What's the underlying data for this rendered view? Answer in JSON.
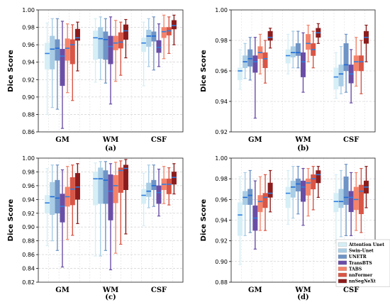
{
  "legend": {
    "placement": "right",
    "items": [
      {
        "name": "Attention Unet",
        "color": "#d6eef6"
      },
      {
        "name": "Swin-Unet",
        "color": "#a9cde5"
      },
      {
        "name": "UNETR",
        "color": "#6f94c6"
      },
      {
        "name": "TransBTS",
        "color": "#6a4ea6"
      },
      {
        "name": "TABS",
        "color": "#f4836b"
      },
      {
        "name": "nnFormer",
        "color": "#d95545"
      },
      {
        "name": "nnSegNeXt",
        "color": "#8c1c1c"
      }
    ]
  },
  "chart_data": [
    {
      "type": "box",
      "label": "(a)",
      "ylabel": "Dice Score",
      "ylim": [
        0.86,
        1.0
      ],
      "yticks": [
        "0.86",
        "0.88",
        "0.90",
        "0.92",
        "0.94",
        "0.96",
        "0.98",
        "1.00"
      ],
      "grid": true,
      "categories": [
        "GM",
        "WM",
        "CSF"
      ],
      "series": [
        {
          "name": "Attention Unet",
          "boxes": [
            [
              0.88,
              0.932,
              0.95,
              0.962,
              0.985
            ],
            [
              0.917,
              0.943,
              0.968,
              0.976,
              0.99
            ],
            [
              0.913,
              0.952,
              0.962,
              0.968,
              0.986
            ]
          ]
        },
        {
          "name": "Swin-Unet",
          "boxes": [
            [
              0.888,
              0.932,
              0.955,
              0.97,
              0.99
            ],
            [
              0.92,
              0.944,
              0.967,
              0.98,
              0.992
            ],
            [
              0.935,
              0.958,
              0.97,
              0.977,
              0.99
            ]
          ]
        },
        {
          "name": "UNETR",
          "boxes": [
            [
              0.886,
              0.942,
              0.956,
              0.966,
              0.99
            ],
            [
              0.916,
              0.943,
              0.966,
              0.975,
              0.99
            ],
            [
              0.931,
              0.964,
              0.97,
              0.975,
              0.992
            ]
          ]
        },
        {
          "name": "TransBTS",
          "boxes": [
            [
              0.864,
              0.913,
              0.947,
              0.955,
              0.987
            ],
            [
              0.892,
              0.938,
              0.958,
              0.97,
              0.992
            ],
            [
              0.935,
              0.951,
              0.957,
              0.965,
              0.984
            ]
          ]
        },
        {
          "name": "TABS",
          "boxes": [
            [
              0.905,
              0.942,
              0.956,
              0.967,
              0.984
            ],
            [
              0.918,
              0.954,
              0.962,
              0.97,
              0.988
            ],
            [
              0.944,
              0.968,
              0.975,
              0.98,
              0.994
            ]
          ]
        },
        {
          "name": "nnFormer",
          "boxes": [
            [
              0.896,
              0.938,
              0.96,
              0.966,
              0.983
            ],
            [
              0.925,
              0.956,
              0.963,
              0.974,
              0.986
            ],
            [
              0.95,
              0.971,
              0.976,
              0.98,
              0.992
            ]
          ]
        },
        {
          "name": "nnSegNeXt",
          "boxes": [
            [
              0.93,
              0.965,
              0.968,
              0.978,
              0.986
            ],
            [
              0.945,
              0.966,
              0.976,
              0.983,
              0.989
            ],
            [
              0.96,
              0.978,
              0.982,
              0.988,
              0.994
            ]
          ]
        }
      ]
    },
    {
      "type": "box",
      "label": "(b)",
      "ylabel": "Dice Score",
      "ylim": [
        0.92,
        1.0
      ],
      "yticks": [
        "0.92",
        "0.94",
        "0.96",
        "0.98",
        "1.00"
      ],
      "grid": true,
      "categories": [
        "GM",
        "WM",
        "CSF"
      ],
      "series": [
        {
          "name": "Attention Unet",
          "boxes": [
            [
              0.948,
              0.954,
              0.96,
              0.962,
              0.974
            ],
            [
              0.958,
              0.965,
              0.97,
              0.974,
              0.984
            ],
            [
              0.942,
              0.948,
              0.956,
              0.962,
              0.972
            ]
          ]
        },
        {
          "name": "Swin-Unet",
          "boxes": [
            [
              0.955,
              0.962,
              0.966,
              0.97,
              0.978
            ],
            [
              0.962,
              0.969,
              0.972,
              0.976,
              0.986
            ],
            [
              0.945,
              0.95,
              0.958,
              0.964,
              0.976
            ]
          ]
        },
        {
          "name": "UNETR",
          "boxes": [
            [
              0.954,
              0.963,
              0.968,
              0.974,
              0.982
            ],
            [
              0.962,
              0.97,
              0.972,
              0.978,
              0.986
            ],
            [
              0.946,
              0.96,
              0.964,
              0.978,
              0.984
            ]
          ]
        },
        {
          "name": "TransBTS",
          "boxes": [
            [
              0.929,
              0.959,
              0.966,
              0.97,
              0.982
            ],
            [
              0.946,
              0.956,
              0.966,
              0.972,
              0.985
            ],
            [
              0.939,
              0.952,
              0.958,
              0.964,
              0.974
            ]
          ]
        },
        {
          "name": "TABS",
          "boxes": [
            [
              0.958,
              0.968,
              0.972,
              0.976,
              0.984
            ],
            [
              0.966,
              0.974,
              0.978,
              0.984,
              0.99
            ],
            [
              0.95,
              0.96,
              0.966,
              0.97,
              0.982
            ]
          ]
        },
        {
          "name": "nnFormer",
          "boxes": [
            [
              0.952,
              0.962,
              0.968,
              0.972,
              0.98
            ],
            [
              0.962,
              0.97,
              0.974,
              0.978,
              0.986
            ],
            [
              0.945,
              0.96,
              0.966,
              0.97,
              0.98
            ]
          ]
        },
        {
          "name": "nnSegNeXt",
          "boxes": [
            [
              0.975,
              0.98,
              0.982,
              0.986,
              0.988
            ],
            [
              0.978,
              0.982,
              0.985,
              0.988,
              0.991
            ],
            [
              0.966,
              0.978,
              0.982,
              0.986,
              0.99
            ]
          ]
        }
      ]
    },
    {
      "type": "box",
      "label": "(c)",
      "ylabel": "Dice Score",
      "ylim": [
        0.82,
        1.0
      ],
      "yticks": [
        "0.82",
        "0.84",
        "0.86",
        "0.88",
        "0.90",
        "0.92",
        "0.94",
        "0.96",
        "0.98",
        "1.00"
      ],
      "grid": true,
      "categories": [
        "GM",
        "WM",
        "CSF"
      ],
      "series": [
        {
          "name": "Attention Unet",
          "boxes": [
            [
              0.873,
              0.92,
              0.935,
              0.946,
              0.985
            ],
            [
              0.858,
              0.932,
              0.97,
              0.98,
              0.993
            ],
            [
              0.902,
              0.934,
              0.946,
              0.955,
              0.978
            ]
          ]
        },
        {
          "name": "Swin-Unet",
          "boxes": [
            [
              0.88,
              0.918,
              0.944,
              0.965,
              0.99
            ],
            [
              0.858,
              0.934,
              0.97,
              0.986,
              0.995
            ],
            [
              0.928,
              0.944,
              0.952,
              0.964,
              0.99
            ]
          ]
        },
        {
          "name": "UNETR",
          "boxes": [
            [
              0.866,
              0.92,
              0.942,
              0.968,
              0.99
            ],
            [
              0.866,
              0.934,
              0.968,
              0.982,
              0.995
            ],
            [
              0.93,
              0.954,
              0.96,
              0.968,
              0.99
            ]
          ]
        },
        {
          "name": "TransBTS",
          "boxes": [
            [
              0.842,
              0.907,
              0.93,
              0.948,
              0.983
            ],
            [
              0.838,
              0.91,
              0.952,
              0.976,
              0.992
            ],
            [
              0.916,
              0.934,
              0.95,
              0.96,
              0.984
            ]
          ]
        },
        {
          "name": "TABS",
          "boxes": [
            [
              0.882,
              0.93,
              0.944,
              0.958,
              0.988
            ],
            [
              0.862,
              0.935,
              0.96,
              0.975,
              0.994
            ],
            [
              0.934,
              0.954,
              0.962,
              0.97,
              0.988
            ]
          ]
        },
        {
          "name": "nnFormer",
          "boxes": [
            [
              0.888,
              0.932,
              0.955,
              0.972,
              0.99
            ],
            [
              0.875,
              0.95,
              0.982,
              0.986,
              0.996
            ],
            [
              0.932,
              0.948,
              0.962,
              0.97,
              0.986
            ]
          ]
        },
        {
          "name": "nnSegNeXt",
          "boxes": [
            [
              0.905,
              0.94,
              0.958,
              0.978,
              0.992
            ],
            [
              0.89,
              0.954,
              0.985,
              0.99,
              0.998
            ],
            [
              0.948,
              0.962,
              0.972,
              0.98,
              0.992
            ]
          ]
        }
      ]
    },
    {
      "type": "box",
      "label": "(d)",
      "ylabel": "Dice Score",
      "ylim": [
        0.88,
        1.0
      ],
      "yticks": [
        "0.88",
        "0.90",
        "0.92",
        "0.94",
        "0.96",
        "0.98",
        "1.00"
      ],
      "grid": true,
      "categories": [
        "GM",
        "WM",
        "CSF"
      ],
      "series": [
        {
          "name": "Attention Unet",
          "boxes": [
            [
              0.897,
              0.925,
              0.945,
              0.957,
              0.982
            ],
            [
              0.936,
              0.952,
              0.966,
              0.972,
              0.988
            ],
            [
              0.918,
              0.948,
              0.958,
              0.966,
              0.984
            ]
          ]
        },
        {
          "name": "Swin-Unet",
          "boxes": [
            [
              0.925,
              0.955,
              0.962,
              0.968,
              0.986
            ],
            [
              0.942,
              0.962,
              0.972,
              0.978,
              0.992
            ],
            [
              0.924,
              0.952,
              0.958,
              0.97,
              0.988
            ]
          ]
        },
        {
          "name": "UNETR",
          "boxes": [
            [
              0.928,
              0.955,
              0.964,
              0.97,
              0.988
            ],
            [
              0.946,
              0.968,
              0.975,
              0.98,
              0.992
            ],
            [
              0.925,
              0.955,
              0.962,
              0.982,
              0.994
            ]
          ]
        },
        {
          "name": "TransBTS",
          "boxes": [
            [
              0.912,
              0.93,
              0.942,
              0.954,
              0.978
            ],
            [
              0.935,
              0.958,
              0.972,
              0.978,
              0.99
            ],
            [
              0.925,
              0.948,
              0.962,
              0.968,
              0.986
            ]
          ]
        },
        {
          "name": "TABS",
          "boxes": [
            [
              0.93,
              0.948,
              0.958,
              0.964,
              0.982
            ],
            [
              0.944,
              0.964,
              0.976,
              0.98,
              0.99
            ],
            [
              0.93,
              0.95,
              0.96,
              0.972,
              0.986
            ]
          ]
        },
        {
          "name": "nnFormer",
          "boxes": [
            [
              0.93,
              0.952,
              0.962,
              0.966,
              0.984
            ],
            [
              0.95,
              0.97,
              0.98,
              0.984,
              0.992
            ],
            [
              0.928,
              0.946,
              0.968,
              0.974,
              0.99
            ]
          ]
        },
        {
          "name": "nnSegNeXt",
          "boxes": [
            [
              0.948,
              0.962,
              0.966,
              0.976,
              0.988
            ],
            [
              0.962,
              0.976,
              0.984,
              0.988,
              0.992
            ],
            [
              0.952,
              0.966,
              0.972,
              0.978,
              0.992
            ]
          ]
        }
      ]
    }
  ]
}
